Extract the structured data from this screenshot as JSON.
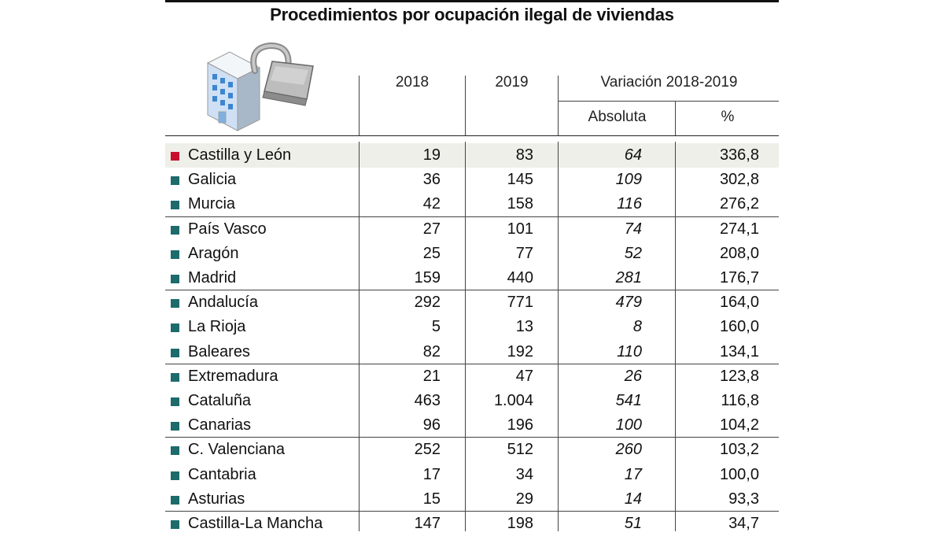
{
  "title": "Procedimientos por ocupación ilegal de viviendas",
  "colors": {
    "highlight_marker": "#c8102e",
    "marker": "#1d6b6b",
    "highlight_row": "#efefe9"
  },
  "icons": {
    "illustration": "building-with-padlock-icon"
  },
  "chart_data": {
    "type": "table",
    "columns": {
      "region": "",
      "y2018": "2018",
      "y2019": "2019",
      "variation_group": "Variación 2018-2019",
      "absolute": "Absoluta",
      "percent": "%"
    },
    "rows": [
      {
        "region": "Castilla y León",
        "y2018": "19",
        "y2019": "83",
        "absolute": "64",
        "percent": "336,8",
        "highlight": true
      },
      {
        "region": "Galicia",
        "y2018": "36",
        "y2019": "145",
        "absolute": "109",
        "percent": "302,8"
      },
      {
        "region": "Murcia",
        "y2018": "42",
        "y2019": "158",
        "absolute": "116",
        "percent": "276,2"
      },
      {
        "region": "País Vasco",
        "y2018": "27",
        "y2019": "101",
        "absolute": "74",
        "percent": "274,1"
      },
      {
        "region": "Aragón",
        "y2018": "25",
        "y2019": "77",
        "absolute": "52",
        "percent": "208,0"
      },
      {
        "region": "Madrid",
        "y2018": "159",
        "y2019": "440",
        "absolute": "281",
        "percent": "176,7"
      },
      {
        "region": "Andalucía",
        "y2018": "292",
        "y2019": "771",
        "absolute": "479",
        "percent": "164,0"
      },
      {
        "region": "La Rioja",
        "y2018": "5",
        "y2019": "13",
        "absolute": "8",
        "percent": "160,0"
      },
      {
        "region": "Baleares",
        "y2018": "82",
        "y2019": "192",
        "absolute": "110",
        "percent": "134,1"
      },
      {
        "region": "Extremadura",
        "y2018": "21",
        "y2019": "47",
        "absolute": "26",
        "percent": "123,8"
      },
      {
        "region": "Cataluña",
        "y2018": "463",
        "y2019": "1.004",
        "absolute": "541",
        "percent": "116,8"
      },
      {
        "region": "Canarias",
        "y2018": "96",
        "y2019": "196",
        "absolute": "100",
        "percent": "104,2"
      },
      {
        "region": "C. Valenciana",
        "y2018": "252",
        "y2019": "512",
        "absolute": "260",
        "percent": "103,2"
      },
      {
        "region": "Cantabria",
        "y2018": "17",
        "y2019": "34",
        "absolute": "17",
        "percent": "100,0"
      },
      {
        "region": "Asturias",
        "y2018": "15",
        "y2019": "29",
        "absolute": "14",
        "percent": "93,3"
      },
      {
        "region": "Castilla-La Mancha",
        "y2018": "147",
        "y2019": "198",
        "absolute": "51",
        "percent": "34,7"
      }
    ]
  }
}
